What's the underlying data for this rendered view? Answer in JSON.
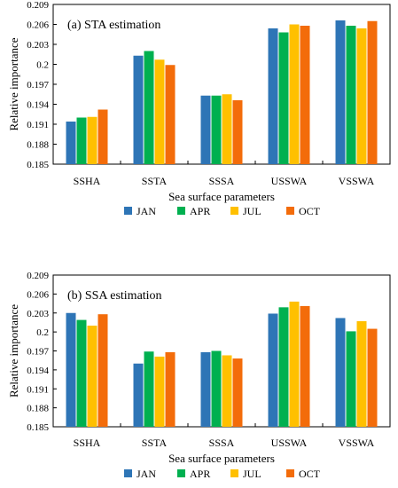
{
  "colors": {
    "JAN": "#2e75b6",
    "APR": "#00b050",
    "JUL": "#ffc000",
    "OCT": "#f36c0a"
  },
  "chart_data": [
    {
      "type": "bar",
      "title": "(a) STA estimation",
      "xlabel": "Sea surface parameters",
      "ylabel": "Relative importance",
      "ylim": [
        0.185,
        0.209
      ],
      "yticks": [
        "0.185",
        "0.188",
        "0.191",
        "0.194",
        "0.197",
        "0.2",
        "0.203",
        "0.206",
        "0.209"
      ],
      "categories": [
        "SSHA",
        "SSTA",
        "SSSA",
        "USSWA",
        "VSSWA"
      ],
      "legend_position": "bottom",
      "grid": false,
      "series": [
        {
          "name": "JAN",
          "values": [
            0.1914,
            0.2013,
            0.1953,
            0.2054,
            0.2066
          ]
        },
        {
          "name": "APR",
          "values": [
            0.192,
            0.202,
            0.1953,
            0.2048,
            0.2058
          ]
        },
        {
          "name": "JUL",
          "values": [
            0.1921,
            0.2007,
            0.1955,
            0.206,
            0.2054
          ]
        },
        {
          "name": "OCT",
          "values": [
            0.1932,
            0.1999,
            0.1946,
            0.2058,
            0.2065
          ]
        }
      ]
    },
    {
      "type": "bar",
      "title": "(b) SSA estimation",
      "xlabel": "Sea surface parameters",
      "ylabel": "Relative importance",
      "ylim": [
        0.185,
        0.209
      ],
      "yticks": [
        "0.185",
        "0.188",
        "0.191",
        "0.194",
        "0.197",
        "0.2",
        "0.203",
        "0.206",
        "0.209"
      ],
      "categories": [
        "SSHA",
        "SSTA",
        "SSSA",
        "USSWA",
        "VSSWA"
      ],
      "legend_position": "bottom",
      "grid": false,
      "series": [
        {
          "name": "JAN",
          "values": [
            0.203,
            0.195,
            0.1968,
            0.2029,
            0.2022
          ]
        },
        {
          "name": "APR",
          "values": [
            0.2019,
            0.1969,
            0.197,
            0.2039,
            0.2001
          ]
        },
        {
          "name": "JUL",
          "values": [
            0.201,
            0.1961,
            0.1963,
            0.2048,
            0.2017
          ]
        },
        {
          "name": "OCT",
          "values": [
            0.2028,
            0.1968,
            0.1958,
            0.2041,
            0.2005
          ]
        }
      ]
    }
  ]
}
